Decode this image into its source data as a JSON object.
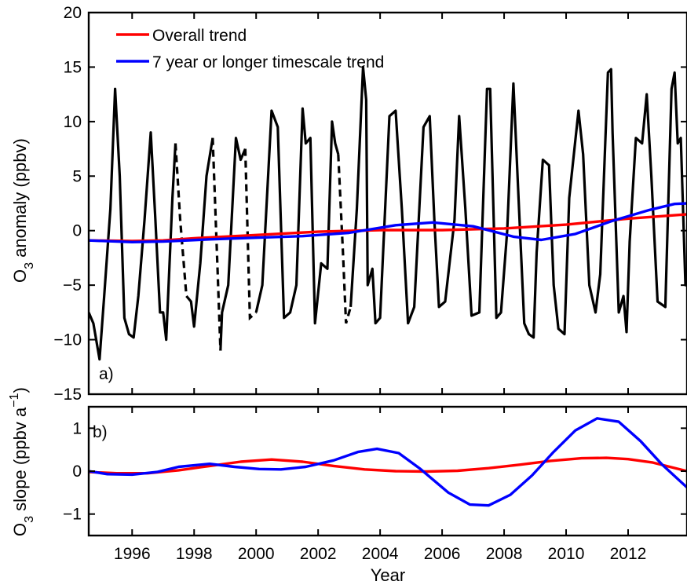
{
  "chart_data": [
    {
      "type": "line",
      "panel_label": "a)",
      "xlabel": "",
      "ylabel_main": "O",
      "ylabel_sub": "3",
      "ylabel_rest": " anomaly (ppbv)",
      "xlim": [
        1994.6,
        2013.9
      ],
      "ylim": [
        -15,
        20
      ],
      "yticks": [
        "20",
        "15",
        "10",
        "5",
        "0",
        "−5",
        "−10",
        "−15"
      ],
      "ytick_values": [
        20,
        15,
        10,
        5,
        0,
        -5,
        -10,
        -15
      ],
      "grid": false,
      "legend_position": "top-left",
      "legend": [
        {
          "label": "Overall trend",
          "color": "#ff0000"
        },
        {
          "label": "7 year or longer timescale trend",
          "color": "#0000ff"
        }
      ],
      "series": [
        {
          "name": "Overall trend",
          "color": "#ff0000",
          "x": [
            1994.6,
            1996,
            1997,
            1998,
            2000,
            2002,
            2004,
            2006,
            2008,
            2010,
            2012,
            2013.9
          ],
          "y": [
            -0.9,
            -0.95,
            -0.9,
            -0.7,
            -0.4,
            -0.1,
            0.05,
            0.05,
            0.2,
            0.55,
            1.1,
            1.5
          ]
        },
        {
          "name": "7 year or longer timescale trend",
          "color": "#0000ff",
          "x": [
            1994.6,
            1996,
            1997,
            1998.5,
            2000,
            2001.5,
            2003,
            2004.5,
            2005.7,
            2007,
            2008.3,
            2009.2,
            2010.3,
            2011.5,
            2012.7,
            2013.5,
            2013.9
          ],
          "y": [
            -0.9,
            -1.05,
            -1.0,
            -0.8,
            -0.65,
            -0.5,
            -0.2,
            0.5,
            0.75,
            0.4,
            -0.55,
            -0.85,
            -0.3,
            0.9,
            1.9,
            2.45,
            2.5
          ]
        }
      ],
      "anomaly_solid": [
        {
          "x": [
            1994.6,
            1994.75,
            1994.95,
            1995.1,
            1995.3,
            1995.45,
            1995.6,
            1995.75,
            1995.9,
            1996.05,
            1996.2,
            1996.4,
            1996.6,
            1996.75,
            1996.9,
            1997.0,
            1997.1,
            1997.3,
            1997.4
          ],
          "y": [
            -7.5,
            -8.5,
            -11.8,
            -6,
            2,
            13,
            5,
            -8,
            -9.5,
            -9.8,
            -6,
            1,
            9,
            1,
            -7.5,
            -7.5,
            -10,
            3,
            8
          ]
        },
        {
          "x": [
            1997.75,
            1997.9,
            1998.0,
            1998.2,
            1998.4,
            1998.6
          ],
          "y": [
            -6,
            -6.5,
            -8.8,
            -3,
            5,
            8.5
          ]
        },
        {
          "x": [
            1998.85,
            1998.9,
            1999.1,
            1999.35,
            1999.5,
            1999.65
          ],
          "y": [
            -11,
            -7.5,
            -5,
            8.5,
            6.5,
            7.5
          ]
        },
        {
          "x": [
            2000.0,
            2000.2,
            2000.5,
            2000.7,
            2000.9,
            2001.1,
            2001.3,
            2001.5,
            2001.6,
            2001.75,
            2001.9,
            2002.1,
            2002.3,
            2002.45,
            2002.55,
            2002.65
          ],
          "y": [
            -7.5,
            -5,
            11,
            9.5,
            -8,
            -7.5,
            -5,
            11.2,
            8,
            8.5,
            -8.5,
            -3,
            -3.5,
            10,
            8,
            7
          ]
        },
        {
          "x": [
            2003.05,
            2003.25,
            2003.45,
            2003.55,
            2003.6,
            2003.75,
            2003.85,
            2004.0,
            2004.3,
            2004.5,
            2004.7,
            2004.9,
            2005.1,
            2005.4,
            2005.6,
            2005.75,
            2005.9,
            2006.1,
            2006.4,
            2006.55,
            2006.75,
            2006.95,
            2007.2,
            2007.45,
            2007.55,
            2007.75,
            2007.9,
            2008.1,
            2008.3,
            2008.45,
            2008.65,
            2008.8,
            2008.95,
            2009.05,
            2009.25,
            2009.45,
            2009.6,
            2009.75,
            2009.95,
            2010.1,
            2010.4,
            2010.55,
            2010.75,
            2010.95,
            2011.1,
            2011.35,
            2011.45,
            2011.5,
            2011.7,
            2011.85,
            2011.95,
            2012.05,
            2012.25,
            2012.45,
            2012.6,
            2012.75,
            2012.95,
            2013.2,
            2013.4,
            2013.5,
            2013.6,
            2013.7,
            2013.85,
            2013.9
          ],
          "y": [
            -7,
            2,
            15,
            12,
            -5,
            -3.5,
            -8.5,
            -8,
            10.5,
            11,
            2,
            -8.5,
            -7,
            9.5,
            10.5,
            1,
            -7,
            -6.5,
            1,
            10.5,
            2,
            -7.8,
            -7.5,
            13,
            13,
            -8,
            -7.5,
            0,
            13.5,
            4,
            -8.5,
            -9.5,
            -9.8,
            -2,
            6.5,
            6,
            -5,
            -9,
            -9.5,
            3,
            11,
            7,
            -5,
            -7.5,
            -4,
            14.5,
            14.8,
            9,
            -7.5,
            -6,
            -9.3,
            -1,
            8.5,
            8,
            12.5,
            5,
            -6.5,
            -7,
            13,
            14.5,
            8,
            8.5,
            -5,
            -5
          ]
        }
      ],
      "anomaly_dashed": [
        {
          "x": [
            1997.4,
            1997.55,
            1997.75
          ],
          "y": [
            8,
            1,
            -6
          ]
        },
        {
          "x": [
            1998.6,
            1998.75,
            1998.85
          ],
          "y": [
            8.5,
            -3,
            -11
          ]
        },
        {
          "x": [
            1999.65,
            1999.8,
            2000.0
          ],
          "y": [
            7.5,
            -8,
            -7.5
          ]
        },
        {
          "x": [
            2002.65,
            2002.8,
            2002.9,
            2003.05
          ],
          "y": [
            7,
            -2,
            -8.5,
            -7
          ]
        }
      ]
    },
    {
      "type": "line",
      "panel_label": "b)",
      "xlabel": "Year",
      "ylabel_main": "O",
      "ylabel_sub": "3",
      "ylabel_mid": " slope (ppbv a",
      "ylabel_sup": "−1",
      "ylabel_end": ")",
      "xlim": [
        1994.6,
        2013.9
      ],
      "ylim": [
        -1.5,
        1.5
      ],
      "xticks": [
        "1996",
        "1998",
        "2000",
        "2002",
        "2004",
        "2006",
        "2008",
        "2010",
        "2012"
      ],
      "xtick_values": [
        1996,
        1998,
        2000,
        2002,
        2004,
        2006,
        2008,
        2010,
        2012
      ],
      "yticks": [
        "1",
        "0",
        "−1"
      ],
      "ytick_values": [
        1,
        0,
        -1
      ],
      "grid": false,
      "series": [
        {
          "name": "Overall trend",
          "color": "#ff0000",
          "x": [
            1994.6,
            1995.5,
            1996.5,
            1997.5,
            1998.5,
            1999.5,
            2000.5,
            2001.5,
            2002.5,
            2003.5,
            2004.5,
            2005.5,
            2006.5,
            2007.5,
            2008.5,
            2009.5,
            2010.5,
            2011.3,
            2012,
            2012.8,
            2013.9
          ],
          "y": [
            -0.02,
            -0.05,
            -0.05,
            0.02,
            0.12,
            0.22,
            0.27,
            0.22,
            0.12,
            0.04,
            0.0,
            -0.01,
            0.01,
            0.07,
            0.15,
            0.24,
            0.3,
            0.31,
            0.28,
            0.2,
            0.0
          ]
        },
        {
          "name": "7 year or longer timescale trend",
          "color": "#0000ff",
          "x": [
            1994.6,
            1995.2,
            1996,
            1996.8,
            1997.5,
            1998.5,
            1999.3,
            2000.1,
            2000.8,
            2001.6,
            2002.5,
            2003.3,
            2003.9,
            2004.6,
            2005.3,
            2006.2,
            2006.9,
            2007.5,
            2008.2,
            2008.9,
            2009.6,
            2010.3,
            2011.0,
            2011.7,
            2012.4,
            2013.1,
            2013.9
          ],
          "y": [
            0.0,
            -0.07,
            -0.08,
            -0.02,
            0.1,
            0.17,
            0.1,
            0.05,
            0.04,
            0.1,
            0.25,
            0.45,
            0.52,
            0.42,
            0.05,
            -0.5,
            -0.78,
            -0.8,
            -0.55,
            -0.1,
            0.45,
            0.95,
            1.23,
            1.15,
            0.7,
            0.15,
            -0.38
          ]
        }
      ]
    }
  ]
}
